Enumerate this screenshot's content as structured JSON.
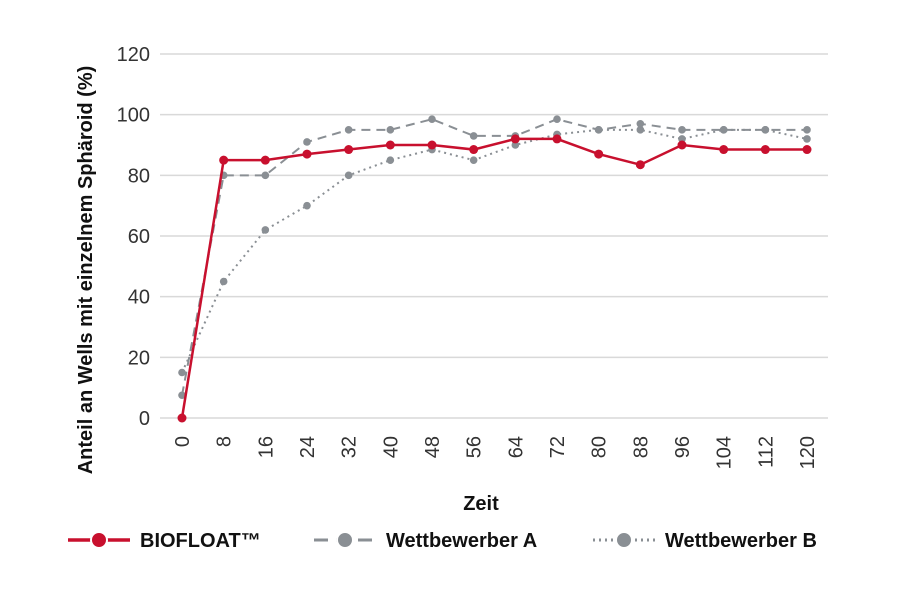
{
  "chart_data": {
    "type": "line",
    "title": "",
    "xlabel": "Zeit",
    "ylabel": "Anteil an Wells mit einzelnem Sphäroid (%)",
    "x": [
      0,
      8,
      16,
      24,
      32,
      40,
      48,
      56,
      64,
      72,
      80,
      88,
      96,
      104,
      112,
      120
    ],
    "x_tick_labels": [
      "0",
      "8",
      "16",
      "24",
      "32",
      "40",
      "48",
      "56",
      "64",
      "72",
      "80",
      "88",
      "96",
      "104",
      "112",
      "120"
    ],
    "ylim": [
      0,
      120
    ],
    "y_ticks": [
      0,
      20,
      40,
      60,
      80,
      100,
      120
    ],
    "y_tick_labels": [
      "0",
      "20",
      "40",
      "60",
      "80",
      "100",
      "120"
    ],
    "grid": "horizontal",
    "legend_position": "bottom",
    "series": [
      {
        "name": "BIOFLOAT™",
        "color": "#c8102e",
        "line_style": "solid",
        "values": [
          0,
          85,
          85,
          87,
          88.5,
          90,
          90,
          88.5,
          92,
          92,
          87,
          83.5,
          90,
          88.5,
          88.5,
          88.5
        ]
      },
      {
        "name": "Wettbewerber A",
        "color": "#8a8f94",
        "line_style": "dashed",
        "values": [
          7.5,
          80,
          80,
          91,
          95,
          95,
          98.5,
          93,
          93,
          98.5,
          95,
          97,
          95,
          95,
          95,
          95
        ]
      },
      {
        "name": "Wettbewerber B",
        "color": "#8a8f94",
        "line_style": "dotted",
        "values": [
          15,
          45,
          62,
          70,
          80,
          85,
          88.5,
          85,
          90,
          93.5,
          95,
          95,
          92,
          95,
          95,
          92
        ]
      }
    ]
  }
}
